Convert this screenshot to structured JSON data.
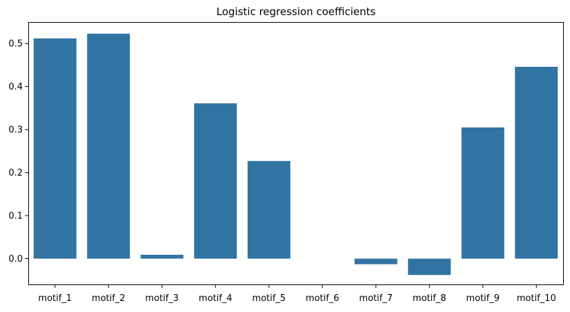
{
  "chart_data": {
    "type": "bar",
    "title": "Logistic regression coefficients",
    "xlabel": "",
    "ylabel": "",
    "categories": [
      "motif_1",
      "motif_2",
      "motif_3",
      "motif_4",
      "motif_5",
      "motif_6",
      "motif_7",
      "motif_8",
      "motif_9",
      "motif_10"
    ],
    "values": [
      0.512,
      0.523,
      0.009,
      0.361,
      0.227,
      0.0,
      -0.013,
      -0.038,
      0.305,
      0.446
    ],
    "ylim": [
      -0.06,
      0.55
    ],
    "yticks": [
      0.0,
      0.1,
      0.2,
      0.3,
      0.4,
      0.5
    ],
    "ytick_labels": [
      "0.0",
      "0.1",
      "0.2",
      "0.3",
      "0.4",
      "0.5"
    ],
    "bar_color": "#3274a1",
    "grid": false,
    "legend": "none"
  }
}
